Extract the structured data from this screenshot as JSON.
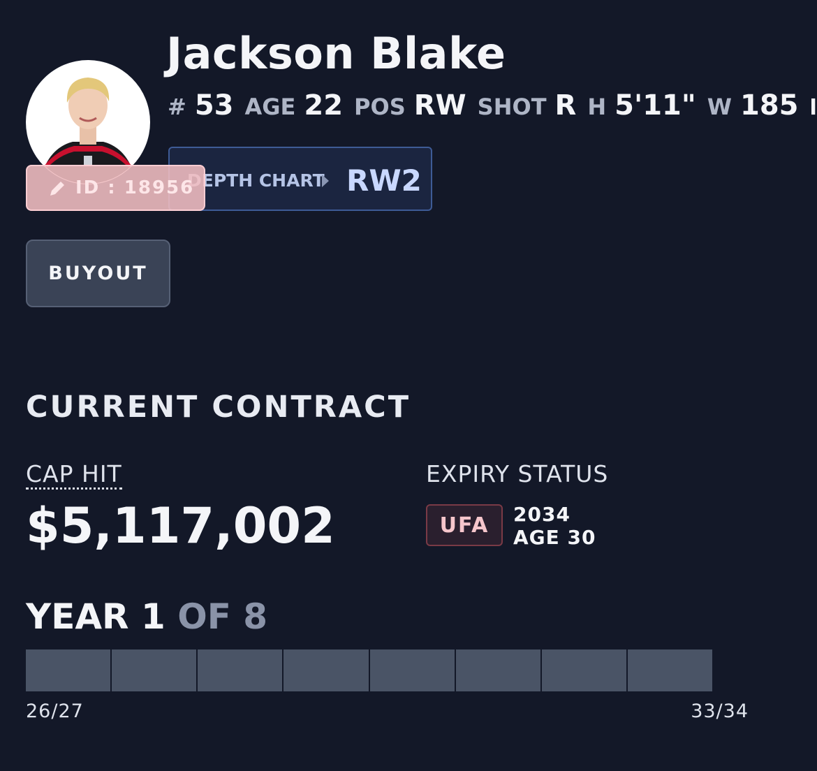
{
  "player": {
    "name": "Jackson Blake",
    "stats": [
      {
        "label": "#",
        "value": "53"
      },
      {
        "label": "AGE",
        "value": "22"
      },
      {
        "label": "POS",
        "value": "RW"
      },
      {
        "label": "SHOT",
        "value": "R"
      },
      {
        "label": "H",
        "value": "5'11\""
      },
      {
        "label": "W",
        "value": "185",
        "unit": "lbs"
      }
    ],
    "id_badge": "ID : 18956",
    "depth_chart": {
      "label": "DEPTH CHART",
      "value": "RW2"
    },
    "buyout_button": "BUYOUT"
  },
  "contract": {
    "title": "CURRENT CONTRACT",
    "cap_hit": {
      "label": "CAP HIT",
      "value": "$5,117,002"
    },
    "expiry": {
      "label": "EXPIRY STATUS",
      "status": "UFA",
      "year": "2034",
      "age": "AGE 30"
    },
    "progress": {
      "current": "YEAR 1",
      "total": "OF 8",
      "start": "26/27",
      "end": "33/34"
    }
  }
}
